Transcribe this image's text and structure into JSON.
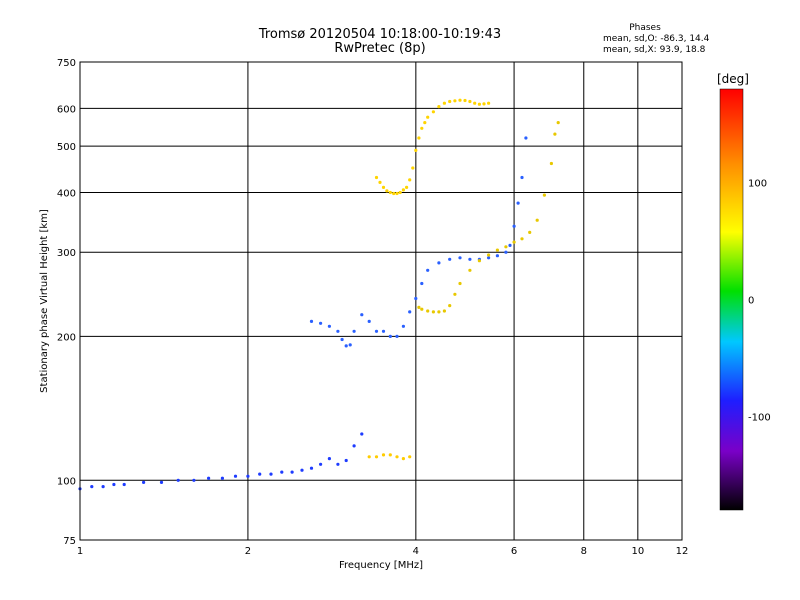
{
  "chart_data": {
    "type": "scatter",
    "title": "Tromsø 20120504 10:18:00-10:19:43",
    "subtitle": "RwPretec (8p)",
    "annotation": {
      "title": "Phases",
      "lines": [
        "mean, sd,O: -86.3, 14.4",
        "mean, sd,X:  93.9, 18.8"
      ]
    },
    "xlabel": "Frequency [MHz]",
    "ylabel": "Stationary phase Virtual Height [km]",
    "x_scale": "log",
    "y_scale": "log",
    "xlim": [
      1,
      12
    ],
    "ylim": [
      75,
      750
    ],
    "x_ticks": [
      1,
      2,
      4,
      6,
      8,
      10,
      12
    ],
    "y_ticks": [
      75,
      100,
      200,
      300,
      400,
      500,
      600,
      750
    ],
    "grid": true,
    "colorbar": {
      "title": "[deg]",
      "range": [
        -180,
        180
      ],
      "ticks": [
        100,
        0,
        -100
      ]
    },
    "series": [
      {
        "points": [
          [
            1.0,
            96
          ],
          [
            1.05,
            97
          ],
          [
            1.1,
            97
          ],
          [
            1.15,
            98
          ],
          [
            1.2,
            98
          ],
          [
            1.3,
            99
          ],
          [
            1.4,
            99
          ],
          [
            1.5,
            100
          ],
          [
            1.6,
            100
          ],
          [
            1.7,
            101
          ],
          [
            1.8,
            101
          ],
          [
            1.9,
            102
          ],
          [
            2.0,
            102
          ],
          [
            2.1,
            103
          ],
          [
            2.2,
            103
          ],
          [
            2.3,
            104
          ],
          [
            2.4,
            104
          ],
          [
            2.5,
            105
          ],
          [
            2.6,
            106
          ],
          [
            2.7,
            108
          ],
          [
            2.8,
            111
          ],
          [
            2.9,
            108
          ],
          [
            3.0,
            110
          ],
          [
            3.1,
            118
          ],
          [
            3.2,
            125
          ]
        ]
      },
      {
        "points": [
          [
            2.6,
            215
          ],
          [
            2.7,
            213
          ],
          [
            2.8,
            210
          ],
          [
            2.9,
            205
          ],
          [
            2.95,
            197
          ],
          [
            3.0,
            191
          ],
          [
            3.05,
            192
          ],
          [
            3.1,
            205
          ],
          [
            3.2,
            222
          ],
          [
            3.3,
            215
          ],
          [
            3.4,
            205
          ],
          [
            3.5,
            205
          ],
          [
            3.6,
            200
          ],
          [
            3.7,
            200
          ],
          [
            3.8,
            210
          ],
          [
            3.9,
            225
          ],
          [
            4.0,
            240
          ],
          [
            4.1,
            258
          ],
          [
            4.2,
            275
          ],
          [
            4.4,
            285
          ],
          [
            4.6,
            290
          ],
          [
            4.8,
            292
          ],
          [
            5.0,
            290
          ],
          [
            5.2,
            290
          ],
          [
            5.4,
            292
          ],
          [
            5.6,
            295
          ],
          [
            5.8,
            300
          ],
          [
            5.9,
            310
          ],
          [
            6.0,
            340
          ],
          [
            6.1,
            380
          ],
          [
            6.2,
            430
          ],
          [
            6.3,
            520
          ]
        ]
      },
      {
        "points": [
          [
            3.4,
            430
          ],
          [
            3.45,
            420
          ],
          [
            3.5,
            410
          ],
          [
            3.55,
            403
          ],
          [
            3.6,
            400
          ],
          [
            3.65,
            398
          ],
          [
            3.7,
            398
          ],
          [
            3.75,
            400
          ],
          [
            3.8,
            405
          ],
          [
            3.85,
            410
          ],
          [
            3.9,
            425
          ],
          [
            3.95,
            450
          ],
          [
            4.0,
            490
          ],
          [
            4.05,
            520
          ],
          [
            4.1,
            545
          ],
          [
            4.15,
            560
          ],
          [
            4.2,
            575
          ],
          [
            4.3,
            590
          ],
          [
            4.4,
            605
          ],
          [
            4.5,
            615
          ],
          [
            4.6,
            620
          ],
          [
            4.7,
            622
          ],
          [
            4.8,
            624
          ],
          [
            4.9,
            623
          ],
          [
            5.0,
            620
          ],
          [
            5.1,
            615
          ],
          [
            5.2,
            612
          ],
          [
            5.3,
            613
          ],
          [
            5.4,
            615
          ]
        ]
      },
      {
        "points": [
          [
            4.05,
            230
          ],
          [
            4.1,
            228
          ],
          [
            4.2,
            226
          ],
          [
            4.3,
            225
          ],
          [
            4.4,
            225
          ],
          [
            4.5,
            226
          ],
          [
            4.6,
            232
          ],
          [
            4.7,
            245
          ],
          [
            4.8,
            258
          ],
          [
            5.0,
            275
          ],
          [
            5.2,
            288
          ],
          [
            5.4,
            296
          ],
          [
            5.6,
            303
          ],
          [
            5.8,
            308
          ],
          [
            6.0,
            315
          ],
          [
            6.2,
            320
          ],
          [
            6.4,
            330
          ],
          [
            6.6,
            350
          ],
          [
            6.8,
            395
          ],
          [
            7.0,
            460
          ],
          [
            7.1,
            530
          ],
          [
            7.2,
            560
          ]
        ]
      },
      {
        "points": [
          [
            3.3,
            112
          ],
          [
            3.4,
            112
          ],
          [
            3.5,
            113
          ],
          [
            3.6,
            113
          ],
          [
            3.7,
            112
          ],
          [
            3.8,
            111
          ],
          [
            3.9,
            112
          ]
        ]
      }
    ]
  }
}
